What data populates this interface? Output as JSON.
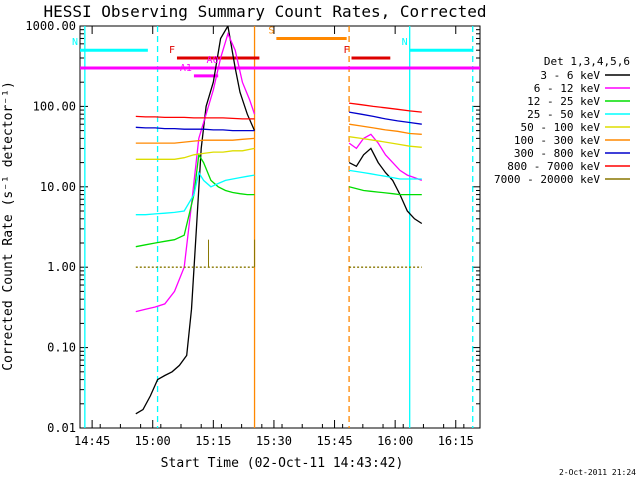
{
  "chart_data": {
    "type": "line",
    "title": "HESSI Observing Summary Count Rates, Corrected",
    "xlabel": "Start Time (02-Oct-11 14:43:42)",
    "ylabel": "Corrected Count Rate (s⁻¹ detector⁻¹)",
    "yscale": "log",
    "ylim": [
      0.01,
      1000
    ],
    "xlim_minutes": [
      14.7,
      16.35
    ],
    "x_units": "hours (decimal, UT)",
    "ytick_labels": [
      "1000.00",
      "100.00",
      "10.00",
      "1.00",
      "0.10",
      "0.01"
    ],
    "ytick_values": [
      1000,
      100,
      10,
      1,
      0.1,
      0.01
    ],
    "xtick_labels": [
      "14:45",
      "15:00",
      "15:15",
      "15:30",
      "15:45",
      "16:00",
      "16:15"
    ],
    "xtick_values": [
      14.75,
      15.0,
      15.25,
      15.5,
      15.75,
      16.0,
      16.25
    ],
    "legend_title": "Det 1,3,4,5,6",
    "legend_placement": "right",
    "footer": "2-Oct-2011 21:24",
    "series": [
      {
        "name": "3 - 6 keV",
        "color": "#000000",
        "segments": [
          {
            "x": [
              14.93,
              14.96,
              14.99,
              15.02,
              15.05,
              15.08,
              15.11,
              15.14,
              15.16,
              15.18,
              15.2,
              15.22,
              15.25,
              15.28,
              15.31,
              15.34,
              15.36,
              15.39,
              15.42
            ],
            "y": [
              0.015,
              0.017,
              0.025,
              0.04,
              0.045,
              0.05,
              0.06,
              0.08,
              0.3,
              3.0,
              30,
              100,
              200,
              700,
              1000,
              300,
              150,
              80,
              50
            ]
          },
          {
            "x": [
              15.81,
              15.84,
              15.87,
              15.9,
              15.93,
              15.96,
              15.99,
              16.02,
              16.05,
              16.08,
              16.11
            ],
            "y": [
              20,
              18,
              25,
              30,
              20,
              15,
              12,
              8,
              5,
              4,
              3.5
            ]
          }
        ]
      },
      {
        "name": "6 - 12 keV",
        "color": "#ff00ff",
        "segments": [
          {
            "x": [
              14.93,
              14.97,
              15.01,
              15.05,
              15.09,
              15.13,
              15.16,
              15.19,
              15.22,
              15.25,
              15.28,
              15.31,
              15.34,
              15.37,
              15.4,
              15.42
            ],
            "y": [
              0.28,
              0.3,
              0.32,
              0.35,
              0.5,
              1.0,
              6.0,
              40,
              80,
              160,
              400,
              800,
              500,
              200,
              120,
              80
            ]
          },
          {
            "x": [
              15.81,
              15.84,
              15.87,
              15.9,
              15.93,
              15.96,
              15.99,
              16.02,
              16.05,
              16.08,
              16.11
            ],
            "y": [
              35,
              30,
              40,
              45,
              35,
              25,
              20,
              16,
              14,
              13,
              12
            ]
          }
        ]
      },
      {
        "name": "12 - 25 keV",
        "color": "#00dd00",
        "segments": [
          {
            "x": [
              14.93,
              14.97,
              15.01,
              15.05,
              15.09,
              15.13,
              15.17,
              15.19,
              15.21,
              15.24,
              15.27,
              15.3,
              15.33,
              15.36,
              15.39,
              15.42
            ],
            "y": [
              1.8,
              1.9,
              2.0,
              2.1,
              2.2,
              2.5,
              8.0,
              25,
              20,
              12,
              10,
              9,
              8.5,
              8.2,
              8,
              8
            ]
          },
          {
            "x": [
              15.81,
              15.84,
              15.87,
              15.9,
              15.93,
              15.96,
              15.99,
              16.02,
              16.05,
              16.08,
              16.11
            ],
            "y": [
              10,
              9.5,
              9,
              8.8,
              8.6,
              8.4,
              8.2,
              8,
              8,
              8,
              8
            ]
          }
        ]
      },
      {
        "name": "25 - 50 keV",
        "color": "#00ffff",
        "segments": [
          {
            "x": [
              14.93,
              14.97,
              15.01,
              15.05,
              15.09,
              15.13,
              15.17,
              15.19,
              15.21,
              15.24,
              15.27,
              15.3,
              15.33,
              15.36,
              15.39,
              15.42
            ],
            "y": [
              4.5,
              4.5,
              4.6,
              4.7,
              4.8,
              5.0,
              8.0,
              15,
              12,
              10,
              11,
              12,
              12.5,
              13,
              13.5,
              14
            ]
          },
          {
            "x": [
              15.81,
              15.84,
              15.87,
              15.9,
              15.93,
              15.96,
              15.99,
              16.02,
              16.05,
              16.08,
              16.11
            ],
            "y": [
              16,
              15.5,
              15,
              14.5,
              14,
              13.5,
              13,
              12.5,
              12.5,
              12.5,
              12.5
            ]
          }
        ]
      },
      {
        "name": "50 - 100 keV",
        "color": "#dddd00",
        "segments": [
          {
            "x": [
              14.93,
              14.97,
              15.01,
              15.05,
              15.09,
              15.13,
              15.17,
              15.21,
              15.25,
              15.29,
              15.33,
              15.37,
              15.42
            ],
            "y": [
              22,
              22,
              22,
              22,
              22,
              23,
              25,
              26,
              27,
              27,
              28,
              28,
              30
            ]
          },
          {
            "x": [
              15.81,
              15.86,
              15.91,
              15.96,
              16.01,
              16.06,
              16.11
            ],
            "y": [
              42,
              40,
              38,
              36,
              34,
              32,
              31
            ]
          }
        ]
      },
      {
        "name": "100 - 300 keV",
        "color": "#ff8800",
        "segments": [
          {
            "x": [
              14.93,
              14.97,
              15.01,
              15.05,
              15.09,
              15.13,
              15.17,
              15.21,
              15.25,
              15.29,
              15.33,
              15.37,
              15.42
            ],
            "y": [
              35,
              35,
              35,
              35,
              35,
              36,
              37,
              38,
              38,
              38,
              38,
              39,
              40
            ]
          },
          {
            "x": [
              15.81,
              15.86,
              15.91,
              15.96,
              16.01,
              16.06,
              16.11
            ],
            "y": [
              60,
              57,
              54,
              51,
              49,
              46,
              45
            ]
          }
        ]
      },
      {
        "name": "300 - 800 keV",
        "color": "#0000cc",
        "segments": [
          {
            "x": [
              14.93,
              14.97,
              15.01,
              15.05,
              15.09,
              15.13,
              15.17,
              15.21,
              15.25,
              15.29,
              15.33,
              15.37,
              15.42
            ],
            "y": [
              55,
              54,
              54,
              53,
              53,
              52,
              52,
              52,
              51,
              51,
              50,
              50,
              50
            ]
          },
          {
            "x": [
              15.81,
              15.86,
              15.91,
              15.96,
              16.01,
              16.06,
              16.11
            ],
            "y": [
              85,
              80,
              75,
              70,
              66,
              63,
              60
            ]
          }
        ]
      },
      {
        "name": "800 - 7000 keV",
        "color": "#ff0000",
        "segments": [
          {
            "x": [
              14.93,
              14.97,
              15.01,
              15.05,
              15.09,
              15.13,
              15.17,
              15.21,
              15.25,
              15.29,
              15.33,
              15.37,
              15.42
            ],
            "y": [
              75,
              74,
              74,
              73,
              73,
              73,
              72,
              72,
              72,
              72,
              71,
              70,
              70
            ]
          },
          {
            "x": [
              15.81,
              15.86,
              15.91,
              15.96,
              16.01,
              16.06,
              16.11
            ],
            "y": [
              110,
              105,
              100,
              96,
              92,
              88,
              85
            ]
          }
        ]
      },
      {
        "name": "7000 - 20000 keV",
        "color": "#887700",
        "segments": [
          {
            "x": [
              14.93,
              14.97,
              15.01,
              15.05,
              15.09,
              15.13,
              15.17,
              15.21,
              15.25,
              15.29,
              15.33,
              15.37,
              15.42
            ],
            "y": [
              1.0,
              1.0,
              1.0,
              1.0,
              1.0,
              1.0,
              1.0,
              1.0,
              1.0,
              1.0,
              1.0,
              1.0,
              1.0
            ]
          },
          {
            "x": [
              15.81,
              15.86,
              15.91,
              15.96,
              16.01,
              16.06,
              16.11
            ],
            "y": [
              1.0,
              1.0,
              1.0,
              1.0,
              1.0,
              1.0,
              1.0
            ]
          }
        ]
      }
    ],
    "annotations": [
      {
        "label": "N",
        "color": "#00ffff",
        "y": 500,
        "x_start": 14.7,
        "x_end": 14.98
      },
      {
        "label": "N",
        "color": "#00ffff",
        "y": 500,
        "x_start": 16.06,
        "x_end": 16.32
      },
      {
        "label": "F",
        "color": "#dd0000",
        "y": 400,
        "x_start": 15.1,
        "x_end": 15.44
      },
      {
        "label": "F",
        "color": "#dd0000",
        "y": 400,
        "x_start": 15.82,
        "x_end": 15.98
      },
      {
        "label": "A0",
        "color": "#ff00ff",
        "y": 300,
        "x_start": 15.28,
        "x_end": 15.28
      },
      {
        "label": "A1",
        "color": "#ff00ff",
        "y": 240,
        "x_start": 15.17,
        "x_end": 15.27
      },
      {
        "label": "S",
        "color": "#ff8800",
        "y": 700,
        "x_start": 15.51,
        "x_end": 15.8
      }
    ],
    "magenta_level": 300,
    "vertical_markers": [
      {
        "x": 14.72,
        "color": "#00ffff",
        "style": "solid"
      },
      {
        "x": 15.02,
        "color": "#00ffff",
        "style": "dashed"
      },
      {
        "x": 15.42,
        "color": "#ff8800",
        "style": "solid"
      },
      {
        "x": 15.81,
        "color": "#ff8800",
        "style": "dashed"
      },
      {
        "x": 16.06,
        "color": "#00ffff",
        "style": "solid"
      },
      {
        "x": 16.32,
        "color": "#00ffff",
        "style": "dashed"
      }
    ],
    "tick_marks": [
      {
        "x": 15.23,
        "color": "#887700"
      },
      {
        "x": 15.42,
        "color": "#887700"
      }
    ]
  }
}
